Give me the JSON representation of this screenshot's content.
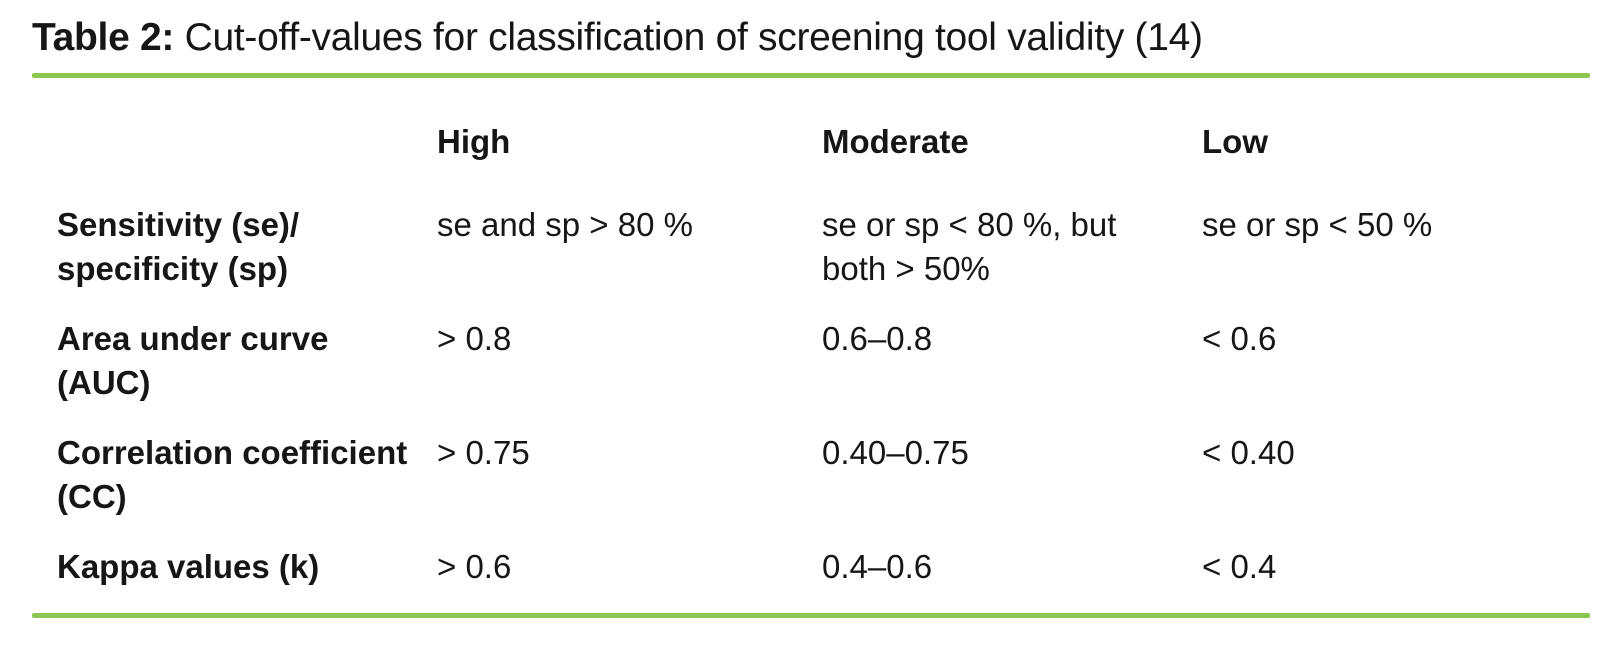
{
  "accent_color": "#8cc652",
  "title": {
    "prefix": "Table 2:",
    "text": " Cut-off-values for classification of screening tool validity (14)"
  },
  "table": {
    "header": {
      "col1": "",
      "col2": "High",
      "col3": "Moderate",
      "col4": "Low"
    },
    "rows": [
      {
        "label": "Sensitivity (se)/\nspecificity (sp)",
        "high": "se and sp > 80 %",
        "moderate": "se or sp < 80 %, but\nboth > 50%",
        "low": "se or sp < 50 %"
      },
      {
        "label": "Area under curve\n(AUC)",
        "high": "> 0.8",
        "moderate": "0.6–0.8",
        "low": "< 0.6"
      },
      {
        "label": "Correlation coefficient\n(CC)",
        "high": "> 0.75",
        "moderate": "0.40–0.75",
        "low": "< 0.40"
      },
      {
        "label": "Kappa values (k)",
        "high": "> 0.6",
        "moderate": "0.4–0.6",
        "low": "< 0.4"
      }
    ]
  }
}
